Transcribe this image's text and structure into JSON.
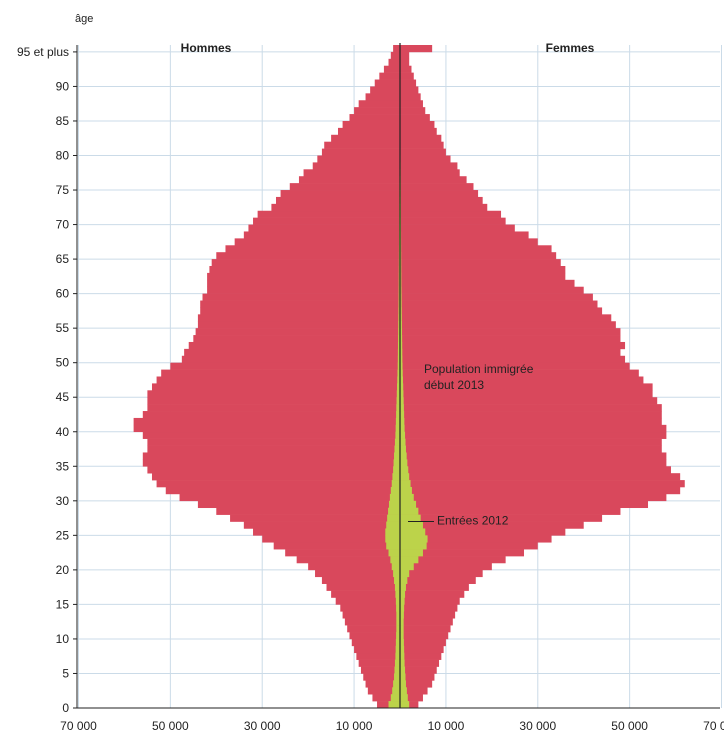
{
  "chart_data": {
    "type": "bar",
    "orientation": "horizontal",
    "ylabel": "âge",
    "yticks": [
      "0",
      "5",
      "10",
      "15",
      "20",
      "25",
      "30",
      "35",
      "40",
      "45",
      "50",
      "55",
      "60",
      "65",
      "70",
      "75",
      "80",
      "85",
      "90",
      "95 et plus"
    ],
    "xticks": [
      "70 000",
      "50 000",
      "30 000",
      "10 000",
      "10 000",
      "30 000",
      "50 000",
      "70 000"
    ],
    "left_group": "Hommes",
    "right_group": "Femmes",
    "xlim": [
      -70000,
      70000
    ],
    "ylim": [
      0,
      96
    ],
    "grid": true,
    "annotations": [
      {
        "text": "Population immigrée",
        "line2": "début 2013"
      },
      {
        "text": "Entrées 2012"
      }
    ],
    "series": [
      {
        "name": "Population immigrée début 2013",
        "color": "#d9485c",
        "ages": [
          0,
          1,
          2,
          3,
          4,
          5,
          6,
          7,
          8,
          9,
          10,
          11,
          12,
          13,
          14,
          15,
          16,
          17,
          18,
          19,
          20,
          21,
          22,
          23,
          24,
          25,
          26,
          27,
          28,
          29,
          30,
          31,
          32,
          33,
          34,
          35,
          36,
          37,
          38,
          39,
          40,
          41,
          42,
          43,
          44,
          45,
          46,
          47,
          48,
          49,
          50,
          51,
          52,
          53,
          54,
          55,
          56,
          57,
          58,
          59,
          60,
          61,
          62,
          63,
          64,
          65,
          66,
          67,
          68,
          69,
          70,
          71,
          72,
          73,
          74,
          75,
          76,
          77,
          78,
          79,
          80,
          81,
          82,
          83,
          84,
          85,
          86,
          87,
          88,
          89,
          90,
          91,
          92,
          93,
          94,
          95
        ],
        "male": [
          5000,
          6000,
          7000,
          7500,
          8000,
          8500,
          9000,
          9500,
          10000,
          10500,
          11000,
          11500,
          12000,
          12500,
          13000,
          14000,
          15000,
          16000,
          17000,
          18500,
          20000,
          22500,
          25000,
          27500,
          30000,
          32000,
          34000,
          37000,
          40000,
          44000,
          48000,
          51000,
          53000,
          54000,
          55000,
          56000,
          56000,
          55000,
          55000,
          56000,
          58000,
          58000,
          56000,
          55000,
          55000,
          55000,
          54000,
          53000,
          52000,
          50000,
          47500,
          47000,
          46000,
          45000,
          44500,
          44000,
          44000,
          43500,
          43500,
          43000,
          42000,
          42000,
          42000,
          41500,
          41000,
          40000,
          38000,
          36000,
          34000,
          33000,
          32000,
          31000,
          28000,
          27000,
          26000,
          24000,
          22000,
          21000,
          19000,
          18000,
          17000,
          16500,
          15000,
          13500,
          12500,
          11000,
          10000,
          9000,
          7500,
          6500,
          5500,
          4500,
          3500,
          2500,
          2000,
          1500
        ],
        "female": [
          4000,
          5000,
          6000,
          7000,
          7500,
          8000,
          8500,
          9000,
          9500,
          10000,
          10500,
          11000,
          11500,
          12000,
          12500,
          13000,
          14000,
          15000,
          16500,
          18000,
          20000,
          23000,
          27000,
          30000,
          33000,
          36000,
          40000,
          44000,
          48000,
          54000,
          58000,
          61000,
          62000,
          61000,
          59000,
          58000,
          58000,
          57000,
          57000,
          58000,
          58000,
          57000,
          57000,
          57000,
          56000,
          55000,
          55000,
          53000,
          52000,
          50000,
          49000,
          48000,
          49000,
          48000,
          48000,
          47000,
          46000,
          44000,
          43000,
          42000,
          40000,
          38000,
          36000,
          36000,
          35000,
          34000,
          33000,
          30000,
          28000,
          25000,
          23000,
          22000,
          19000,
          18000,
          17000,
          16000,
          14500,
          13000,
          12500,
          11000,
          10000,
          9500,
          9000,
          8000,
          7500,
          6500,
          5500,
          5000,
          4500,
          4000,
          3500,
          3000,
          2500,
          2000,
          2000,
          7000
        ]
      },
      {
        "name": "Entrées 2012",
        "color": "#bcd34a",
        "ages": [
          0,
          1,
          2,
          3,
          4,
          5,
          6,
          7,
          8,
          9,
          10,
          11,
          12,
          13,
          14,
          15,
          16,
          17,
          18,
          19,
          20,
          21,
          22,
          23,
          24,
          25,
          26,
          27,
          28,
          29,
          30,
          31,
          32,
          33,
          34,
          35,
          36,
          37,
          38,
          39,
          40,
          41,
          42,
          43,
          44,
          45,
          46,
          47,
          48,
          49,
          50,
          51,
          52,
          53,
          54,
          55,
          56,
          57,
          58,
          59,
          60,
          61,
          62,
          63,
          64,
          65,
          66,
          67,
          68,
          69,
          70,
          71,
          72,
          73,
          74,
          75,
          76,
          77,
          78,
          79,
          80,
          81,
          82,
          83,
          84,
          85,
          86,
          87,
          88,
          89,
          90,
          91,
          92,
          93,
          94,
          95
        ],
        "male": [
          2500,
          2000,
          1700,
          1500,
          1300,
          1200,
          1100,
          1000,
          950,
          900,
          850,
          800,
          800,
          800,
          850,
          900,
          1000,
          1100,
          1300,
          1500,
          1800,
          2100,
          2500,
          3000,
          3200,
          3200,
          3000,
          2800,
          2600,
          2400,
          2200,
          2000,
          1800,
          1650,
          1500,
          1400,
          1300,
          1200,
          1100,
          1000,
          950,
          900,
          850,
          800,
          750,
          700,
          650,
          600,
          550,
          500,
          480,
          460,
          440,
          420,
          400,
          380,
          360,
          340,
          320,
          300,
          290,
          280,
          270,
          260,
          250,
          240,
          230,
          220,
          210,
          200,
          190,
          180,
          170,
          160,
          150,
          140,
          130,
          120,
          110,
          100,
          95,
          90,
          85,
          80,
          75,
          70,
          65,
          60,
          55,
          50,
          45,
          40,
          35,
          30,
          25,
          20
        ],
        "female": [
          2000,
          1700,
          1500,
          1300,
          1200,
          1100,
          1000,
          950,
          900,
          850,
          800,
          800,
          800,
          850,
          900,
          1000,
          1100,
          1300,
          1600,
          2000,
          3000,
          4000,
          5000,
          5800,
          6000,
          5500,
          5000,
          4500,
          4000,
          3500,
          3000,
          2600,
          2300,
          2000,
          1800,
          1600,
          1450,
          1300,
          1200,
          1100,
          1000,
          950,
          900,
          850,
          800,
          750,
          700,
          650,
          600,
          550,
          520,
          500,
          480,
          460,
          440,
          420,
          400,
          380,
          360,
          340,
          320,
          300,
          290,
          280,
          270,
          260,
          250,
          240,
          230,
          220,
          210,
          200,
          190,
          180,
          170,
          160,
          150,
          140,
          130,
          120,
          110,
          105,
          100,
          95,
          90,
          85,
          80,
          75,
          70,
          65,
          60,
          55,
          50,
          45,
          40,
          35
        ]
      }
    ]
  },
  "colors": {
    "grid": "#cbdbe8",
    "axis": "#222222",
    "center_line": "#222222"
  }
}
